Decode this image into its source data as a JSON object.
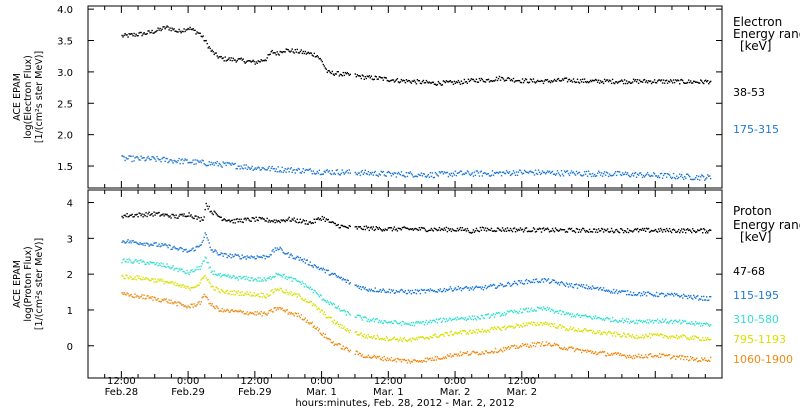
{
  "chart_data": [
    {
      "type": "scatter",
      "panel": "electron",
      "ylabel_lines": [
        "ACE EPAM",
        "log(Electron Flux)",
        "[1/(cm²s ster MeV)]"
      ],
      "ylim": [
        1.15,
        4.05
      ],
      "yticks": [
        1.5,
        2.0,
        2.5,
        3.0,
        3.5,
        4.0
      ],
      "ytick_labels": [
        "1.5",
        "2.0",
        "2.5",
        "3.0",
        "3.5",
        "4.0"
      ],
      "legend_title_lines": [
        "Electron",
        "Energy ranges",
        "[keV]"
      ],
      "series": [
        {
          "name": "38-53",
          "color": "#000000",
          "x": [
            0,
            4,
            6,
            8,
            9.5,
            10,
            12,
            14,
            15,
            16,
            17,
            18,
            21,
            24,
            26,
            27,
            28,
            29,
            32,
            35,
            36,
            37,
            40,
            42,
            44,
            46,
            48,
            50,
            52,
            56,
            60,
            64,
            66,
            68,
            72,
            76,
            80,
            84,
            88,
            96,
            104,
            106
          ],
          "values": [
            3.58,
            3.62,
            3.66,
            3.72,
            3.68,
            3.65,
            3.71,
            3.62,
            3.5,
            3.35,
            3.27,
            3.22,
            3.2,
            3.16,
            3.22,
            3.33,
            3.3,
            3.36,
            3.33,
            3.28,
            3.17,
            3.0,
            2.97,
            2.95,
            2.92,
            2.91,
            2.89,
            2.87,
            2.86,
            2.83,
            2.84,
            2.88,
            2.88,
            2.91,
            2.87,
            2.86,
            2.88,
            2.86,
            2.86,
            2.86,
            2.85,
            2.86
          ]
        },
        {
          "name": "175-315",
          "color": "#1f78d8",
          "x": [
            0,
            6,
            12,
            16,
            20,
            24,
            30,
            36,
            40,
            44,
            48,
            52,
            56,
            60,
            66,
            72,
            78,
            84,
            90,
            96,
            104,
            106
          ],
          "values": [
            1.63,
            1.62,
            1.58,
            1.55,
            1.52,
            1.48,
            1.45,
            1.42,
            1.41,
            1.4,
            1.38,
            1.38,
            1.37,
            1.39,
            1.39,
            1.41,
            1.4,
            1.39,
            1.38,
            1.36,
            1.33,
            1.33
          ]
        }
      ]
    },
    {
      "type": "scatter",
      "panel": "proton",
      "ylabel_lines": [
        "ACE EPAM",
        "log(Proton Flux)",
        "[1/(cm²s ster MeV)]"
      ],
      "ylim": [
        -0.9,
        4.35
      ],
      "yticks": [
        0,
        1,
        2,
        3,
        4
      ],
      "ytick_labels": [
        "0",
        "1",
        "2",
        "3",
        "4"
      ],
      "legend_title_lines": [
        "Proton",
        "Energy ranges",
        "[keV]"
      ],
      "series": [
        {
          "name": "47-68",
          "color": "#000000",
          "x": [
            0,
            6,
            10,
            12,
            14,
            14.8,
            15,
            16,
            18,
            20,
            24,
            28,
            30,
            34,
            36,
            38,
            40,
            42,
            44,
            48,
            56,
            62,
            63,
            64,
            72,
            80,
            88,
            96,
            106
          ],
          "values": [
            3.65,
            3.7,
            3.62,
            3.7,
            3.55,
            3.6,
            4.0,
            3.78,
            3.58,
            3.5,
            3.55,
            3.5,
            3.55,
            3.45,
            3.6,
            3.42,
            3.33,
            3.31,
            3.3,
            3.28,
            3.27,
            3.26,
            3.2,
            3.27,
            3.26,
            3.24,
            3.24,
            3.24,
            3.23
          ]
        },
        {
          "name": "115-195",
          "color": "#1f78d8",
          "x": [
            0,
            4,
            8,
            12,
            14,
            15,
            16,
            18,
            22,
            26,
            28,
            30,
            32,
            34,
            36,
            38,
            40,
            42,
            44,
            48,
            52,
            56,
            60,
            64,
            68,
            72,
            76,
            80,
            84,
            88,
            92,
            96,
            100,
            104,
            106
          ],
          "values": [
            2.95,
            2.88,
            2.8,
            2.65,
            2.8,
            3.15,
            2.7,
            2.55,
            2.5,
            2.5,
            2.75,
            2.55,
            2.45,
            2.3,
            2.15,
            2.0,
            1.85,
            1.7,
            1.6,
            1.55,
            1.52,
            1.55,
            1.62,
            1.62,
            1.7,
            1.8,
            1.85,
            1.72,
            1.65,
            1.55,
            1.48,
            1.45,
            1.42,
            1.35,
            1.33
          ]
        },
        {
          "name": "310-580",
          "color": "#33e0d0",
          "x": [
            0,
            4,
            8,
            12,
            14,
            15,
            16,
            18,
            22,
            26,
            28,
            30,
            32,
            34,
            36,
            38,
            40,
            42,
            44,
            48,
            52,
            56,
            60,
            64,
            68,
            72,
            76,
            80,
            84,
            88,
            92,
            96,
            100,
            104,
            106
          ],
          "values": [
            2.4,
            2.35,
            2.25,
            2.05,
            2.2,
            2.45,
            2.1,
            1.95,
            1.9,
            1.85,
            2.05,
            1.9,
            1.8,
            1.6,
            1.35,
            1.15,
            0.95,
            0.85,
            0.75,
            0.68,
            0.62,
            0.7,
            0.78,
            0.8,
            0.9,
            1.0,
            1.05,
            0.9,
            0.82,
            0.75,
            0.7,
            0.72,
            0.68,
            0.62,
            0.62
          ]
        },
        {
          "name": "795-1193",
          "color": "#d8e000",
          "x": [
            0,
            4,
            8,
            12,
            14,
            15,
            16,
            18,
            22,
            26,
            28,
            30,
            32,
            34,
            36,
            38,
            40,
            42,
            44,
            48,
            52,
            56,
            60,
            64,
            68,
            72,
            76,
            80,
            84,
            88,
            92,
            96,
            100,
            104,
            106
          ],
          "values": [
            1.95,
            1.9,
            1.8,
            1.62,
            1.75,
            2.0,
            1.68,
            1.52,
            1.48,
            1.42,
            1.62,
            1.48,
            1.4,
            1.2,
            0.95,
            0.7,
            0.5,
            0.38,
            0.28,
            0.22,
            0.18,
            0.28,
            0.38,
            0.42,
            0.5,
            0.6,
            0.65,
            0.5,
            0.42,
            0.35,
            0.28,
            0.3,
            0.27,
            0.22,
            0.22
          ]
        },
        {
          "name": "1060-1900",
          "color": "#f08a12",
          "x": [
            0,
            4,
            8,
            12,
            14,
            15,
            16,
            18,
            22,
            26,
            28,
            30,
            32,
            34,
            36,
            38,
            40,
            42,
            44,
            48,
            52,
            56,
            60,
            64,
            68,
            72,
            76,
            80,
            84,
            88,
            92,
            96,
            100,
            104,
            106
          ],
          "values": [
            1.45,
            1.38,
            1.28,
            1.1,
            1.22,
            1.45,
            1.15,
            1.0,
            0.95,
            0.9,
            1.08,
            0.95,
            0.85,
            0.65,
            0.35,
            0.1,
            -0.05,
            -0.18,
            -0.28,
            -0.35,
            -0.42,
            -0.35,
            -0.22,
            -0.18,
            -0.1,
            0.02,
            0.08,
            -0.05,
            -0.15,
            -0.22,
            -0.28,
            -0.25,
            -0.3,
            -0.38,
            -0.35
          ]
        }
      ]
    }
  ],
  "x_axis": {
    "range_hours": [
      -6,
      108
    ],
    "ticks": [
      {
        "x": 0,
        "time": "12:00",
        "date": "Feb.28"
      },
      {
        "x": 12,
        "time": "0:00",
        "date": "Feb.29"
      },
      {
        "x": 24,
        "time": "12:00",
        "date": "Feb.29"
      },
      {
        "x": 36,
        "time": "0:00",
        "date": "Mar. 1"
      },
      {
        "x": 48,
        "time": "12:00",
        "date": "Mar. 1"
      },
      {
        "x": 60,
        "time": "0:00",
        "date": "Mar. 2"
      },
      {
        "x": 72,
        "time": "12:00",
        "date": "Mar. 2"
      }
    ],
    "xlabel": "hours:minutes, Feb. 28, 2012 - Mar. 2, 2012"
  }
}
